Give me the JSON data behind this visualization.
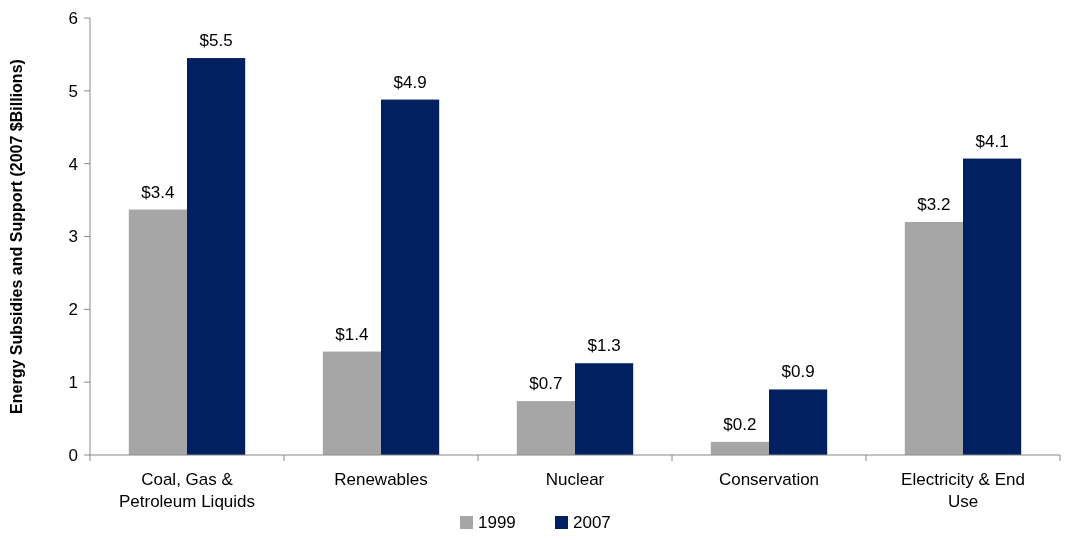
{
  "chart_data": {
    "type": "bar",
    "ylabel": "Energy Subsidies and Support  (2007 $Billions)",
    "categories": [
      "Coal, Gas & Petroleum Liquids",
      "Renewables",
      "Nuclear",
      "Conservation",
      "Electricity & End Use"
    ],
    "series": [
      {
        "name": "1999",
        "color": "#a6a6a6",
        "values": [
          3.37,
          1.42,
          0.74,
          0.18,
          3.2
        ],
        "value_labels": [
          "$3.4",
          "$1.4",
          "$0.7",
          "$0.2",
          "$3.2"
        ]
      },
      {
        "name": "2007",
        "color": "#002060",
        "values": [
          5.45,
          4.88,
          1.26,
          0.9,
          4.07
        ],
        "value_labels": [
          "$5.5",
          "$4.9",
          "$1.3",
          "$0.9",
          "$4.1"
        ]
      }
    ],
    "ylim": [
      0,
      6
    ],
    "yticks": [
      0,
      1,
      2,
      3,
      4,
      5,
      6
    ],
    "grid": false,
    "legend": "bottom"
  }
}
